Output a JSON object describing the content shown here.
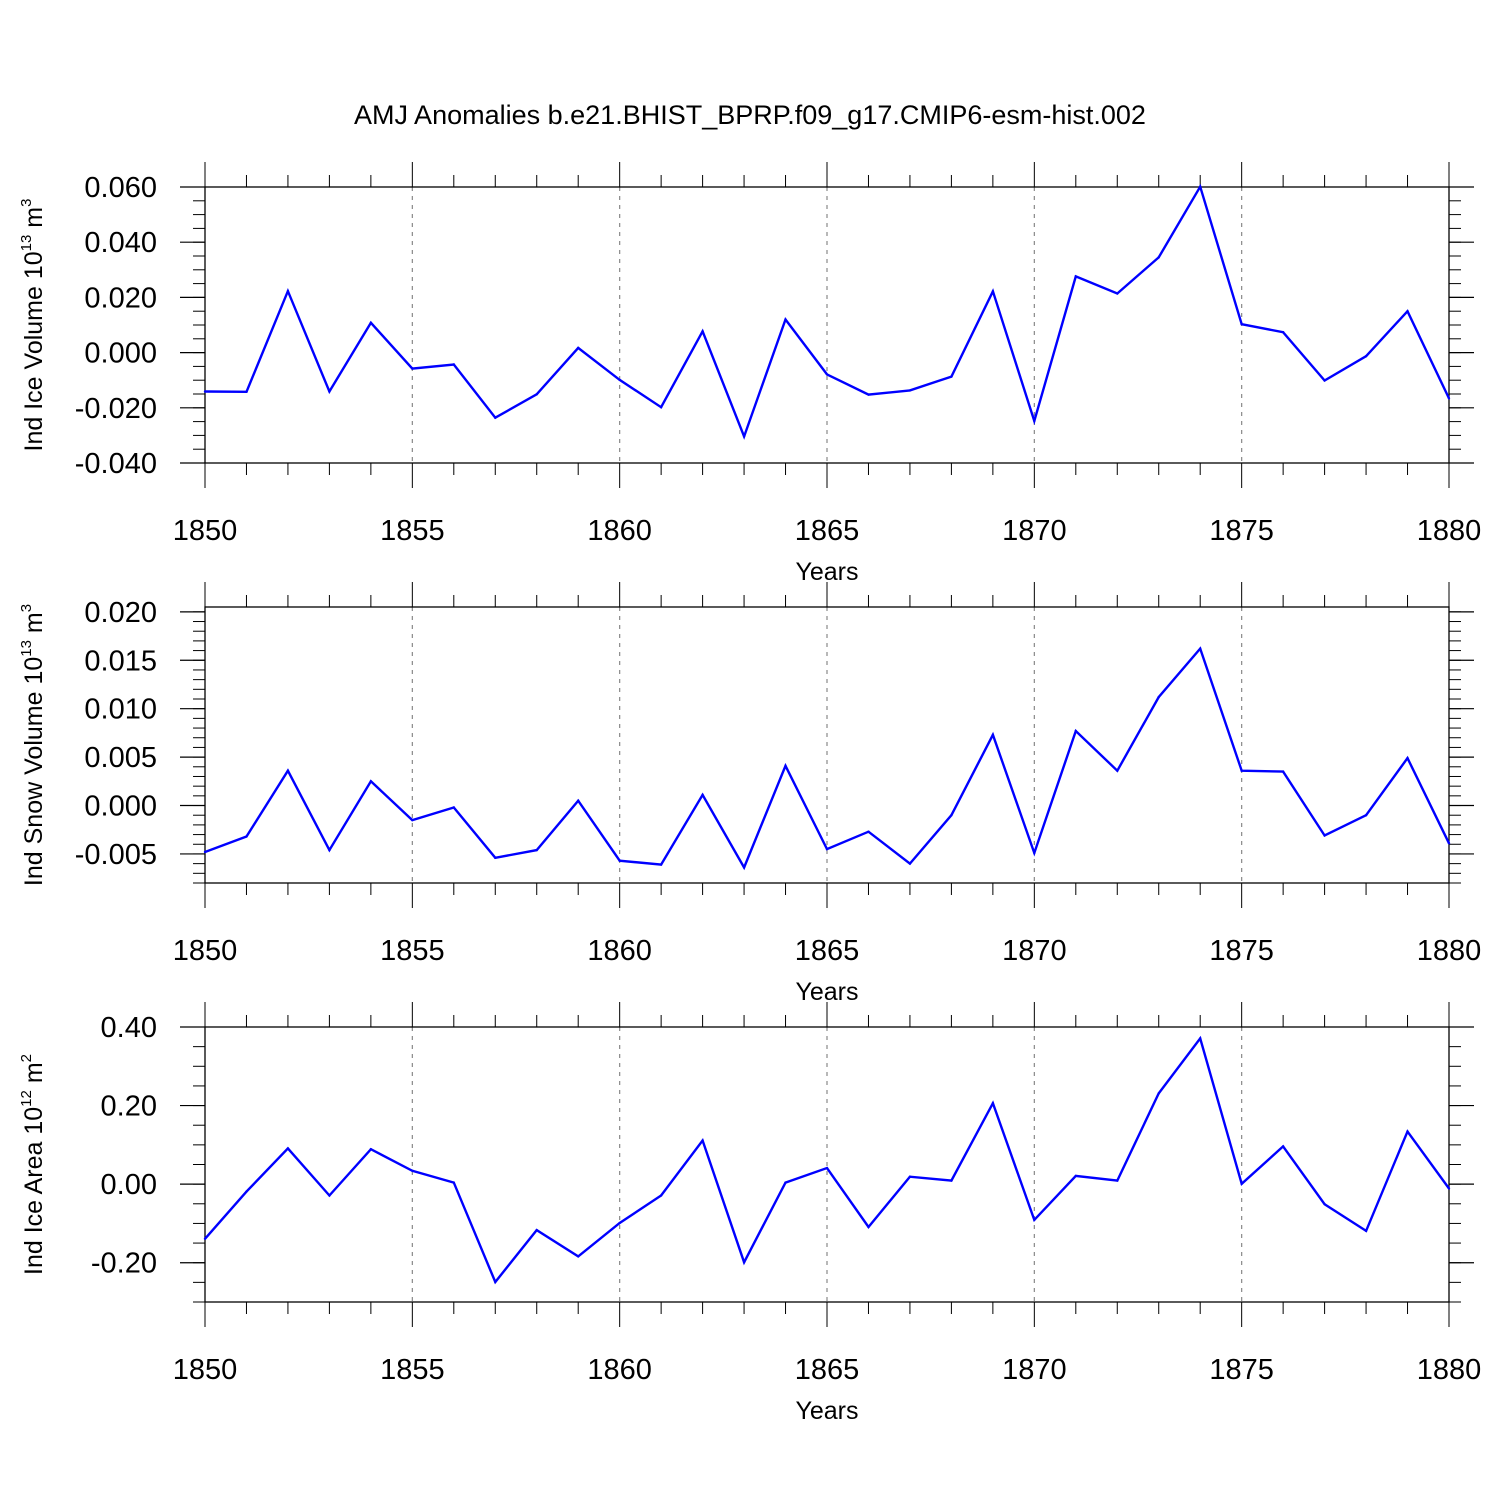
{
  "chart_data": [
    {
      "type": "line",
      "title": "AMJ Anomalies b.e21.BHIST_BPRP.f09_g17.CMIP6-esm-hist.002",
      "xlabel": "Years",
      "ylabel": {
        "text": "Ind Ice Volume 10",
        "exponent": "13",
        "unit": " m",
        "unit_exponent": "3"
      },
      "xlim": [
        1850,
        1880
      ],
      "ylim": [
        -0.04,
        0.06
      ],
      "x_ticks": [
        "1850",
        "1855",
        "1860",
        "1865",
        "1870",
        "1875",
        "1880"
      ],
      "y_ticks": [
        "0.060",
        "0.040",
        "0.020",
        "0.000",
        "-0.020",
        "-0.040"
      ],
      "y_tick_values": [
        0.06,
        0.04,
        0.02,
        0.0,
        -0.02,
        -0.04
      ],
      "y_minor_step": 0.005,
      "line_color": "#0000ff",
      "series": [
        {
          "name": "Ind Ice Volume",
          "x": [
            1850,
            1851,
            1852,
            1853,
            1854,
            1855,
            1856,
            1857,
            1858,
            1859,
            1860,
            1861,
            1862,
            1863,
            1864,
            1865,
            1866,
            1867,
            1868,
            1869,
            1870,
            1871,
            1872,
            1873,
            1874,
            1875,
            1876,
            1877,
            1878,
            1879,
            1880
          ],
          "values": [
            -0.0141,
            -0.0142,
            0.0223,
            -0.0141,
            0.0108,
            -0.0058,
            -0.0043,
            -0.0236,
            -0.0151,
            0.0017,
            -0.0099,
            -0.0198,
            0.0077,
            -0.0304,
            0.012,
            -0.0079,
            -0.0152,
            -0.0137,
            -0.0087,
            0.0222,
            -0.0248,
            0.0276,
            0.0214,
            0.0345,
            0.0601,
            0.0103,
            0.0074,
            -0.0101,
            -0.0013,
            0.015,
            -0.0166
          ]
        }
      ]
    },
    {
      "type": "line",
      "xlabel": "Years",
      "ylabel": {
        "text": "Ind Snow Volume 10",
        "exponent": "13",
        "unit": " m",
        "unit_exponent": "3"
      },
      "xlim": [
        1850,
        1880
      ],
      "ylim": [
        -0.008,
        0.0205
      ],
      "x_ticks": [
        "1850",
        "1855",
        "1860",
        "1865",
        "1870",
        "1875",
        "1880"
      ],
      "y_ticks": [
        "0.020",
        "0.015",
        "0.010",
        "0.005",
        "0.000",
        "-0.005"
      ],
      "y_tick_values": [
        0.02,
        0.015,
        0.01,
        0.005,
        0.0,
        -0.005
      ],
      "y_minor_step": 0.001,
      "line_color": "#0000ff",
      "series": [
        {
          "name": "Ind Snow Volume",
          "x": [
            1850,
            1851,
            1852,
            1853,
            1854,
            1855,
            1856,
            1857,
            1858,
            1859,
            1860,
            1861,
            1862,
            1863,
            1864,
            1865,
            1866,
            1867,
            1868,
            1869,
            1870,
            1871,
            1872,
            1873,
            1874,
            1875,
            1876,
            1877,
            1878,
            1879,
            1880
          ],
          "values": [
            -0.0048,
            -0.0032,
            0.0036,
            -0.0046,
            0.0025,
            -0.0015,
            -0.0002,
            -0.0054,
            -0.0046,
            0.0005,
            -0.0057,
            -0.0061,
            0.0011,
            -0.0064,
            0.0041,
            -0.0045,
            -0.0027,
            -0.006,
            -0.001,
            0.0073,
            -0.0049,
            0.0077,
            0.0036,
            0.0112,
            0.0162,
            0.0036,
            0.0035,
            -0.0031,
            -0.001,
            0.0049,
            -0.0039
          ]
        }
      ]
    },
    {
      "type": "line",
      "xlabel": "Years",
      "ylabel": {
        "text": "Ind Ice Area 10",
        "exponent": "12",
        "unit": " m",
        "unit_exponent": "2"
      },
      "xlim": [
        1850,
        1880
      ],
      "ylim": [
        -0.3,
        0.4
      ],
      "x_ticks": [
        "1850",
        "1855",
        "1860",
        "1865",
        "1870",
        "1875",
        "1880"
      ],
      "y_ticks": [
        "0.40",
        "0.20",
        "0.00",
        "-0.20"
      ],
      "y_tick_values": [
        0.4,
        0.2,
        0.0,
        -0.2
      ],
      "y_minor_step": 0.05,
      "line_color": "#0000ff",
      "series": [
        {
          "name": "Ind Ice Area",
          "x": [
            1850,
            1851,
            1852,
            1853,
            1854,
            1855,
            1856,
            1857,
            1858,
            1859,
            1860,
            1861,
            1862,
            1863,
            1864,
            1865,
            1866,
            1867,
            1868,
            1869,
            1870,
            1871,
            1872,
            1873,
            1874,
            1875,
            1876,
            1877,
            1878,
            1879,
            1880
          ],
          "values": [
            -0.139,
            -0.019,
            0.091,
            -0.029,
            0.089,
            0.034,
            0.004,
            -0.249,
            -0.117,
            -0.184,
            -0.099,
            -0.029,
            0.111,
            -0.199,
            0.004,
            0.041,
            -0.109,
            0.019,
            0.009,
            0.206,
            -0.091,
            0.021,
            0.009,
            0.231,
            0.371,
            0.001,
            0.096,
            -0.051,
            -0.119,
            0.134,
            -0.011
          ]
        }
      ]
    }
  ]
}
